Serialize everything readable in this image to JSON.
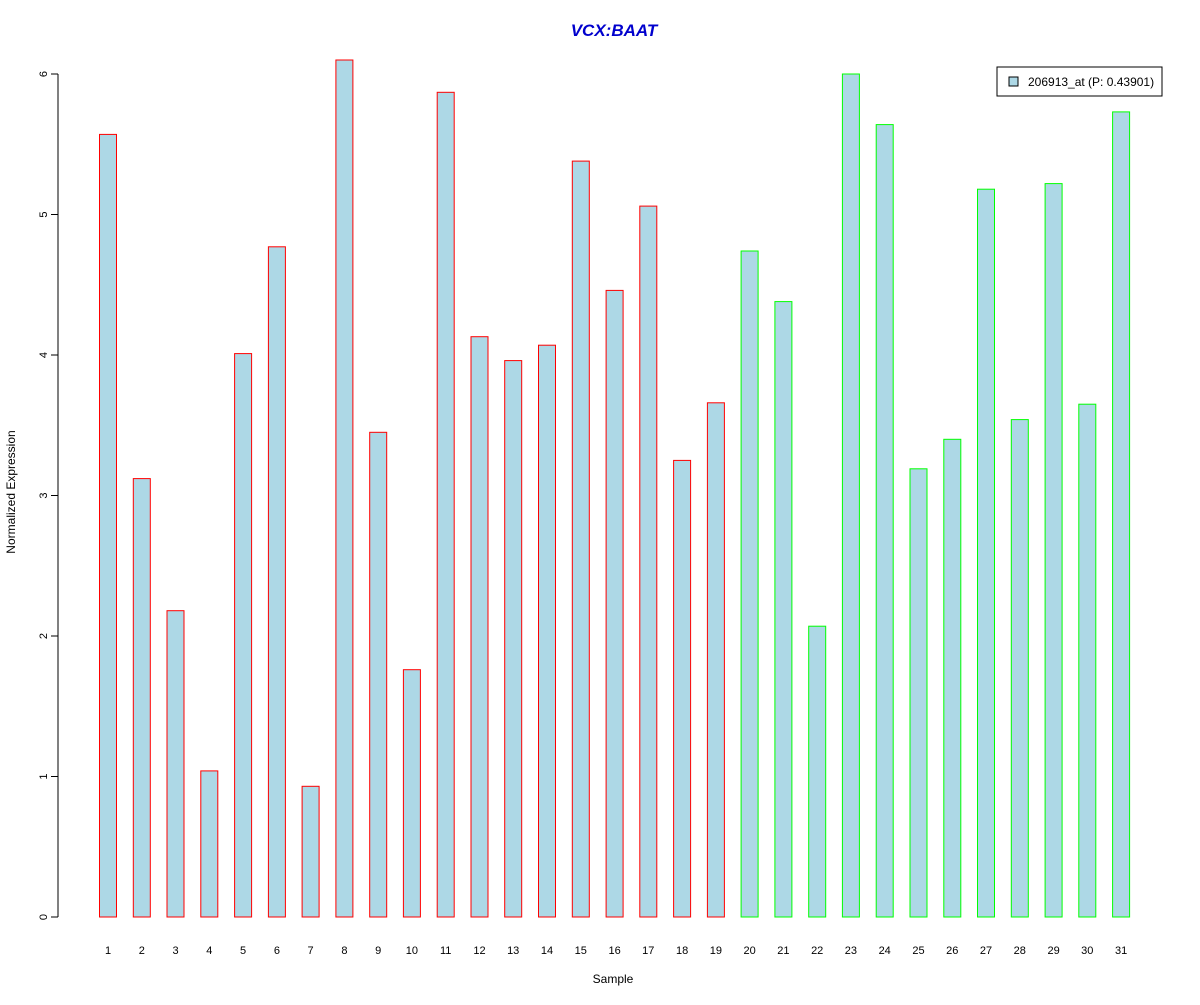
{
  "chart_data": {
    "type": "bar",
    "title": "VCX:BAAT",
    "xlabel": "Sample",
    "ylabel": "Normalized Expression",
    "ylim": [
      0,
      6.1
    ],
    "yticks": [
      0,
      1,
      2,
      3,
      4,
      5,
      6
    ],
    "grid": false,
    "legend": {
      "placement": "top-right",
      "entries": [
        "206913_at (P: 0.43901)"
      ]
    },
    "categories": [
      "1",
      "2",
      "3",
      "4",
      "5",
      "6",
      "7",
      "8",
      "9",
      "10",
      "11",
      "12",
      "13",
      "14",
      "15",
      "16",
      "17",
      "18",
      "19",
      "20",
      "21",
      "22",
      "23",
      "24",
      "25",
      "26",
      "27",
      "28",
      "29",
      "30",
      "31"
    ],
    "series": [
      {
        "name": "206913_at (P: 0.43901)",
        "values": [
          5.57,
          3.12,
          2.18,
          1.04,
          4.01,
          4.77,
          0.93,
          6.1,
          3.45,
          1.76,
          5.87,
          4.13,
          3.96,
          4.07,
          5.38,
          4.46,
          5.06,
          3.25,
          3.66,
          4.74,
          4.38,
          2.07,
          6.0,
          5.64,
          3.19,
          3.4,
          5.18,
          3.54,
          5.22,
          3.65,
          5.73
        ]
      }
    ],
    "group_sizes": [
      19,
      12
    ],
    "colors": {
      "fill": "#add8e6",
      "group_borders": [
        "#ff0000",
        "#00ff00"
      ],
      "title": "#0000cd",
      "axis": "#000000"
    }
  }
}
